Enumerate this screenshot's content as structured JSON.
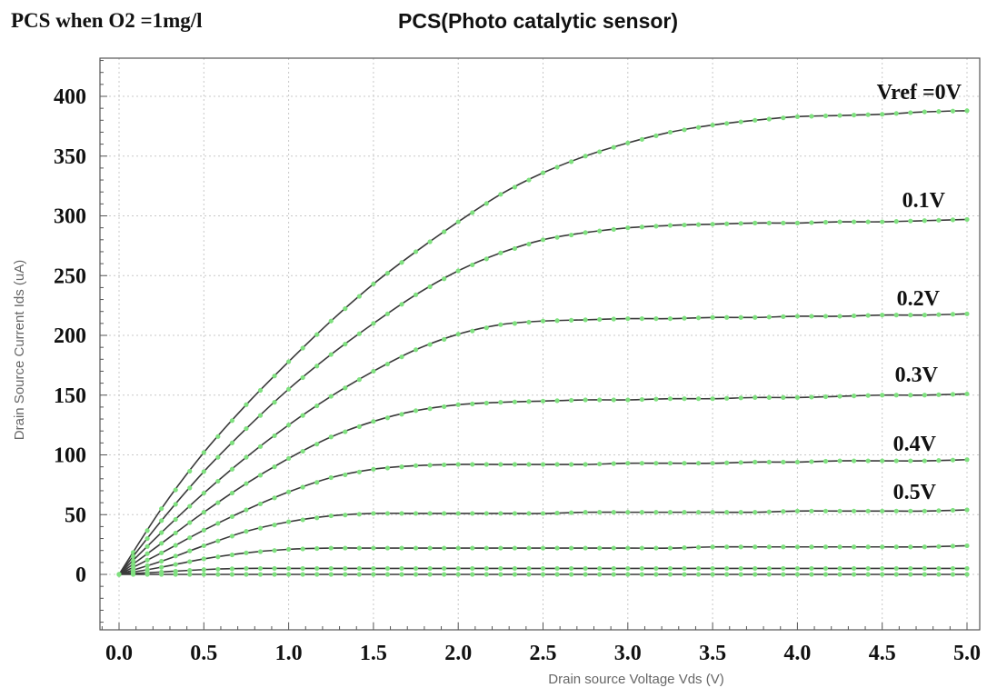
{
  "header": {
    "left_title": "PCS when O2 =1mg/l",
    "right_title": "PCS(Photo catalytic sensor)"
  },
  "colors": {
    "line": "#3a3a3a",
    "marker": "#7fe07f",
    "grid": "#c8c8c8",
    "frame": "#555555"
  },
  "chart_data": {
    "type": "line",
    "title": "PCS(Photo catalytic sensor)",
    "xlabel": "Drain source Voltage Vds (V)",
    "ylabel": "Drain Source Current Ids (uA)",
    "xlim": [
      -0.1,
      5.05
    ],
    "ylim": [
      -45,
      435
    ],
    "x_ticks": [
      "0.0",
      "0.5",
      "1.0",
      "1.5",
      "2.0",
      "2.5",
      "3.0",
      "3.5",
      "4.0",
      "4.5",
      "5.0"
    ],
    "y_ticks": [
      "0",
      "50",
      "100",
      "150",
      "200",
      "250",
      "300",
      "350",
      "400"
    ],
    "grid": true,
    "x": [
      0,
      0.25,
      0.5,
      0.75,
      1.0,
      1.25,
      1.5,
      1.75,
      2.0,
      2.25,
      2.5,
      2.75,
      3.0,
      3.25,
      3.5,
      3.75,
      4.0,
      4.25,
      4.5,
      4.75,
      5.0
    ],
    "series": [
      {
        "name": "Vref =0V",
        "label": "Vref =0V",
        "values": [
          0,
          55,
          102,
          142,
          178,
          212,
          243,
          270,
          295,
          318,
          336,
          350,
          361,
          370,
          376,
          380,
          383,
          384,
          385,
          387,
          388
        ]
      },
      {
        "name": "0.1V",
        "label": "0.1V",
        "values": [
          0,
          45,
          86,
          122,
          155,
          184,
          210,
          234,
          254,
          269,
          280,
          286,
          290,
          292,
          293,
          294,
          294,
          295,
          295,
          296,
          297
        ]
      },
      {
        "name": "0.2V",
        "label": "0.2V",
        "values": [
          0,
          35,
          68,
          98,
          125,
          149,
          170,
          188,
          201,
          209,
          212,
          213,
          214,
          214,
          215,
          215,
          216,
          216,
          217,
          217,
          218
        ]
      },
      {
        "name": "0.3V",
        "label": "0.3V",
        "values": [
          0,
          26,
          52,
          76,
          97,
          115,
          128,
          137,
          142,
          144,
          145,
          146,
          146,
          147,
          147,
          148,
          148,
          149,
          150,
          150,
          151
        ]
      },
      {
        "name": "0.4V",
        "label": "0.4V",
        "values": [
          0,
          18,
          37,
          54,
          69,
          81,
          88,
          91,
          92,
          92,
          92,
          92,
          93,
          93,
          93,
          94,
          94,
          95,
          95,
          95,
          96
        ]
      },
      {
        "name": "0.5V",
        "label": "0.5V",
        "values": [
          0,
          11,
          24,
          36,
          44,
          49,
          51,
          51,
          51,
          51,
          51,
          52,
          52,
          52,
          52,
          52,
          53,
          53,
          53,
          53,
          54
        ]
      },
      {
        "name": "",
        "label": "",
        "values": [
          0,
          6,
          13,
          18,
          21,
          22,
          22,
          22,
          22,
          22,
          22,
          22,
          22,
          22,
          23,
          23,
          23,
          23,
          23,
          23,
          24
        ]
      },
      {
        "name": "",
        "label": "",
        "values": [
          0,
          2,
          4,
          5,
          5,
          5,
          5,
          5,
          5,
          5,
          5,
          5,
          5,
          5,
          5,
          5,
          5,
          5,
          5,
          5,
          5
        ]
      },
      {
        "name": "",
        "label": "",
        "values": [
          0,
          0,
          0,
          0,
          0,
          0,
          0,
          0,
          0,
          0,
          0,
          0,
          0,
          0,
          0,
          0,
          0,
          0,
          0,
          0,
          0
        ]
      }
    ]
  }
}
